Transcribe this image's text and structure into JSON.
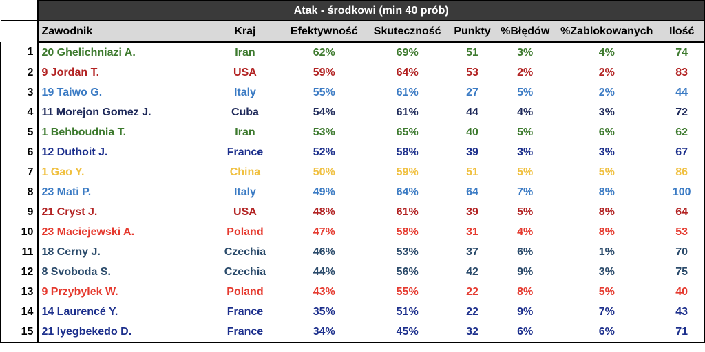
{
  "chart_data": {
    "type": "table",
    "title": "Atak - środkowi (min 40 prób)",
    "columns": [
      "Zawodnik",
      "Kraj",
      "Efektywność",
      "Skuteczność",
      "Punkty",
      "%Błędów",
      "%Zablokowanych",
      "Ilość"
    ],
    "rows": [
      {
        "rank": "1",
        "name": "20 Ghelichniazi A.",
        "kraj": "Iran",
        "ef": "62%",
        "sk": "69%",
        "pk": "51",
        "bl": "3%",
        "za": "4%",
        "il": "74",
        "color": "#3d7a2e"
      },
      {
        "rank": "2",
        "name": "9 Jordan T.",
        "kraj": "USA",
        "ef": "59%",
        "sk": "64%",
        "pk": "53",
        "bl": "2%",
        "za": "2%",
        "il": "83",
        "color": "#b22222"
      },
      {
        "rank": "3",
        "name": "19 Taiwo G.",
        "kraj": "Italy",
        "ef": "55%",
        "sk": "61%",
        "pk": "27",
        "bl": "5%",
        "za": "2%",
        "il": "44",
        "color": "#3b7bc4"
      },
      {
        "rank": "4",
        "name": "11 Morejon Gomez J.",
        "kraj": "Cuba",
        "ef": "54%",
        "sk": "61%",
        "pk": "44",
        "bl": "4%",
        "za": "3%",
        "il": "72",
        "color": "#1f2a5a"
      },
      {
        "rank": "5",
        "name": "1 Behboudnia T.",
        "kraj": "Iran",
        "ef": "53%",
        "sk": "65%",
        "pk": "40",
        "bl": "5%",
        "za": "6%",
        "il": "62",
        "color": "#3d7a2e"
      },
      {
        "rank": "6",
        "name": "12 Duthoit J.",
        "kraj": "France",
        "ef": "52%",
        "sk": "58%",
        "pk": "39",
        "bl": "3%",
        "za": "3%",
        "il": "67",
        "color": "#1c2f8c"
      },
      {
        "rank": "7",
        "name": "1 Gao Y.",
        "kraj": "China",
        "ef": "50%",
        "sk": "59%",
        "pk": "51",
        "bl": "5%",
        "za": "5%",
        "il": "86",
        "color": "#f0c040"
      },
      {
        "rank": "8",
        "name": "23 Mati P.",
        "kraj": "Italy",
        "ef": "49%",
        "sk": "64%",
        "pk": "64",
        "bl": "7%",
        "za": "8%",
        "il": "100",
        "color": "#3b7bc4"
      },
      {
        "rank": "9",
        "name": "21 Cryst  J.",
        "kraj": "USA",
        "ef": "48%",
        "sk": "61%",
        "pk": "39",
        "bl": "5%",
        "za": "8%",
        "il": "64",
        "color": "#b22222"
      },
      {
        "rank": "10",
        "name": "23 Maciejewski A.",
        "kraj": "Poland",
        "ef": "47%",
        "sk": "58%",
        "pk": "31",
        "bl": "4%",
        "za": "8%",
        "il": "53",
        "color": "#e53a2f"
      },
      {
        "rank": "11",
        "name": "18 Cerny J.",
        "kraj": "Czechia",
        "ef": "46%",
        "sk": "53%",
        "pk": "37",
        "bl": "6%",
        "za": "1%",
        "il": "70",
        "color": "#2a4a6a"
      },
      {
        "rank": "12",
        "name": "8 Svoboda S.",
        "kraj": "Czechia",
        "ef": "44%",
        "sk": "56%",
        "pk": "42",
        "bl": "9%",
        "za": "3%",
        "il": "75",
        "color": "#2a4a6a"
      },
      {
        "rank": "13",
        "name": "9 Przybylek W.",
        "kraj": "Poland",
        "ef": "43%",
        "sk": "55%",
        "pk": "22",
        "bl": "8%",
        "za": "5%",
        "il": "40",
        "color": "#e53a2f"
      },
      {
        "rank": "14",
        "name": "14 Laurencé Y.",
        "kraj": "France",
        "ef": "35%",
        "sk": "51%",
        "pk": "22",
        "bl": "9%",
        "za": "7%",
        "il": "43",
        "color": "#1c2f8c"
      },
      {
        "rank": "15",
        "name": "21 Iyegbekedo D.",
        "kraj": "France",
        "ef": "34%",
        "sk": "45%",
        "pk": "32",
        "bl": "6%",
        "za": "6%",
        "il": "71",
        "color": "#1c2f8c"
      }
    ]
  }
}
